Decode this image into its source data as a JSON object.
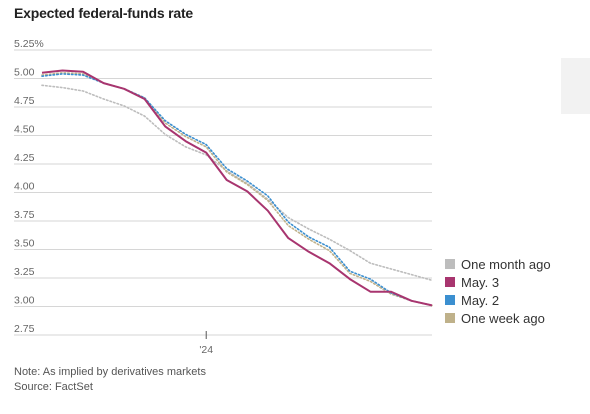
{
  "chart_data": {
    "type": "line",
    "title": "Expected federal-funds rate",
    "note": "Note: As implied by derivatives markets",
    "source": "Source: FactSet",
    "ylim": [
      2.75,
      5.25
    ],
    "y_ticks": [
      "5.25%",
      "5.00",
      "4.75",
      "4.50",
      "4.25",
      "4.00",
      "3.75",
      "3.50",
      "3.25",
      "3.00",
      "2.75"
    ],
    "x_ticks": [
      {
        "label": "'24",
        "x": 8
      }
    ],
    "xlim": [
      0,
      19
    ],
    "grid": true,
    "legend_position": "right",
    "series": [
      {
        "name": "One month ago",
        "color": "#bdbdbd",
        "style": "dotted",
        "x": [
          0,
          1,
          2,
          3,
          4,
          5,
          6,
          7,
          8,
          9,
          10,
          11,
          12,
          13,
          14,
          15,
          16,
          17,
          18,
          19
        ],
        "values": [
          4.94,
          4.92,
          4.89,
          4.82,
          4.76,
          4.67,
          4.51,
          4.4,
          4.33,
          4.19,
          4.08,
          3.94,
          3.78,
          3.68,
          3.59,
          3.49,
          3.38,
          3.33,
          3.28,
          3.23
        ]
      },
      {
        "name": "May. 3",
        "color": "#a8356f",
        "style": "solid",
        "x": [
          0,
          1,
          2,
          3,
          4,
          5,
          6,
          7,
          8,
          9,
          10,
          11,
          12,
          13,
          14,
          15,
          16,
          17,
          18,
          19
        ],
        "values": [
          5.05,
          5.07,
          5.06,
          4.96,
          4.91,
          4.82,
          4.58,
          4.45,
          4.35,
          4.11,
          4.01,
          3.84,
          3.6,
          3.48,
          3.38,
          3.24,
          3.13,
          3.13,
          3.05,
          3.01
        ]
      },
      {
        "name": "May. 2",
        "color": "#3b8fd0",
        "style": "dotted",
        "x": [
          0,
          1,
          2,
          3,
          4,
          5,
          6,
          7,
          8,
          9,
          10,
          11,
          12,
          13,
          14,
          15,
          16,
          17,
          18,
          19
        ],
        "values": [
          5.02,
          5.04,
          5.03,
          4.96,
          4.91,
          4.83,
          4.63,
          4.51,
          4.42,
          4.21,
          4.1,
          3.97,
          3.74,
          3.61,
          3.52,
          3.31,
          3.24,
          3.12,
          3.05,
          3.01
        ]
      },
      {
        "name": "One week ago",
        "color": "#bfb18a",
        "style": "dotted",
        "x": [
          0,
          1,
          2,
          3,
          4,
          5,
          6,
          7,
          8,
          9,
          10,
          11,
          12,
          13,
          14,
          15,
          16,
          17,
          18,
          19
        ],
        "values": [
          5.03,
          5.05,
          5.04,
          4.96,
          4.91,
          4.83,
          4.61,
          4.49,
          4.4,
          4.18,
          4.07,
          3.93,
          3.71,
          3.59,
          3.49,
          3.29,
          3.22,
          3.11,
          3.05,
          3.01
        ]
      }
    ]
  }
}
